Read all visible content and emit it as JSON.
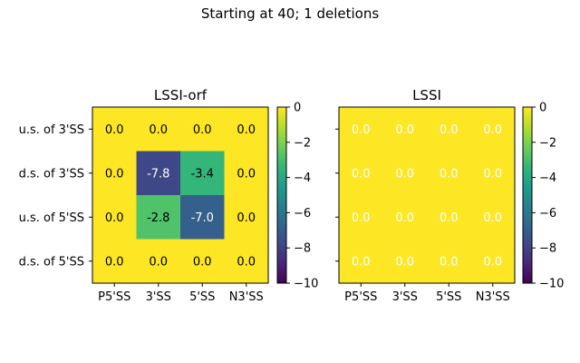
{
  "suptitle": "Starting at 40; 1 deletions",
  "colors": {
    "viridis": [
      "#440154",
      "#482878",
      "#3e4989",
      "#31688e",
      "#26828e",
      "#1f9e89",
      "#35b779",
      "#6ece58",
      "#b5de2b",
      "#fde725"
    ]
  },
  "chart_data": [
    {
      "type": "heatmap",
      "title": "LSSI-orf",
      "x_categories": [
        "P5'SS",
        "3'SS",
        "5'SS",
        "N3'SS"
      ],
      "y_categories": [
        "u.s. of 3'SS",
        "d.s. of 3'SS",
        "u.s. of 5'SS",
        "d.s. of 5'SS"
      ],
      "values": [
        [
          0.0,
          0.0,
          0.0,
          0.0
        ],
        [
          0.0,
          -7.8,
          -3.4,
          0.0
        ],
        [
          0.0,
          -2.8,
          -7.0,
          0.0
        ],
        [
          0.0,
          0.0,
          0.0,
          0.0
        ]
      ],
      "labels": [
        [
          "0.0",
          "0.0",
          "0.0",
          "0.0"
        ],
        [
          "0.0",
          "-7.8",
          "-3.4",
          "0.0"
        ],
        [
          "0.0",
          "-2.8",
          "-7.0",
          "0.0"
        ],
        [
          "0.0",
          "0.0",
          "0.0",
          "0.0"
        ]
      ],
      "annotation_text_color": "#000000",
      "colorbar": {
        "range": [
          -10,
          0
        ],
        "ticks": [
          0,
          -2,
          -4,
          -6,
          -8,
          -10
        ],
        "tick_labels": [
          "0",
          "−2",
          "−4",
          "−6",
          "−8",
          "−10"
        ],
        "colormap": "viridis"
      }
    },
    {
      "type": "heatmap",
      "title": "LSSI",
      "x_categories": [
        "P5'SS",
        "3'SS",
        "5'SS",
        "N3'SS"
      ],
      "y_categories": [
        "",
        "",
        "",
        ""
      ],
      "values": [
        [
          0.0,
          0.0,
          0.0,
          0.0
        ],
        [
          0.0,
          0.0,
          0.0,
          0.0
        ],
        [
          0.0,
          0.0,
          0.0,
          0.0
        ],
        [
          0.0,
          0.0,
          0.0,
          0.0
        ]
      ],
      "labels": [
        [
          "0.0",
          "0.0",
          "0.0",
          "0.0"
        ],
        [
          "0.0",
          "0.0",
          "0.0",
          "0.0"
        ],
        [
          "0.0",
          "0.0",
          "0.0",
          "0.0"
        ],
        [
          "0.0",
          "0.0",
          "0.0",
          "0.0"
        ]
      ],
      "annotation_text_color": "#ffffff",
      "colorbar": {
        "range": [
          -10,
          0
        ],
        "ticks": [
          0,
          -2,
          -4,
          -6,
          -8,
          -10
        ],
        "tick_labels": [
          "0",
          "−2",
          "−4",
          "−6",
          "−8",
          "−10"
        ],
        "colormap": "viridis"
      }
    }
  ]
}
